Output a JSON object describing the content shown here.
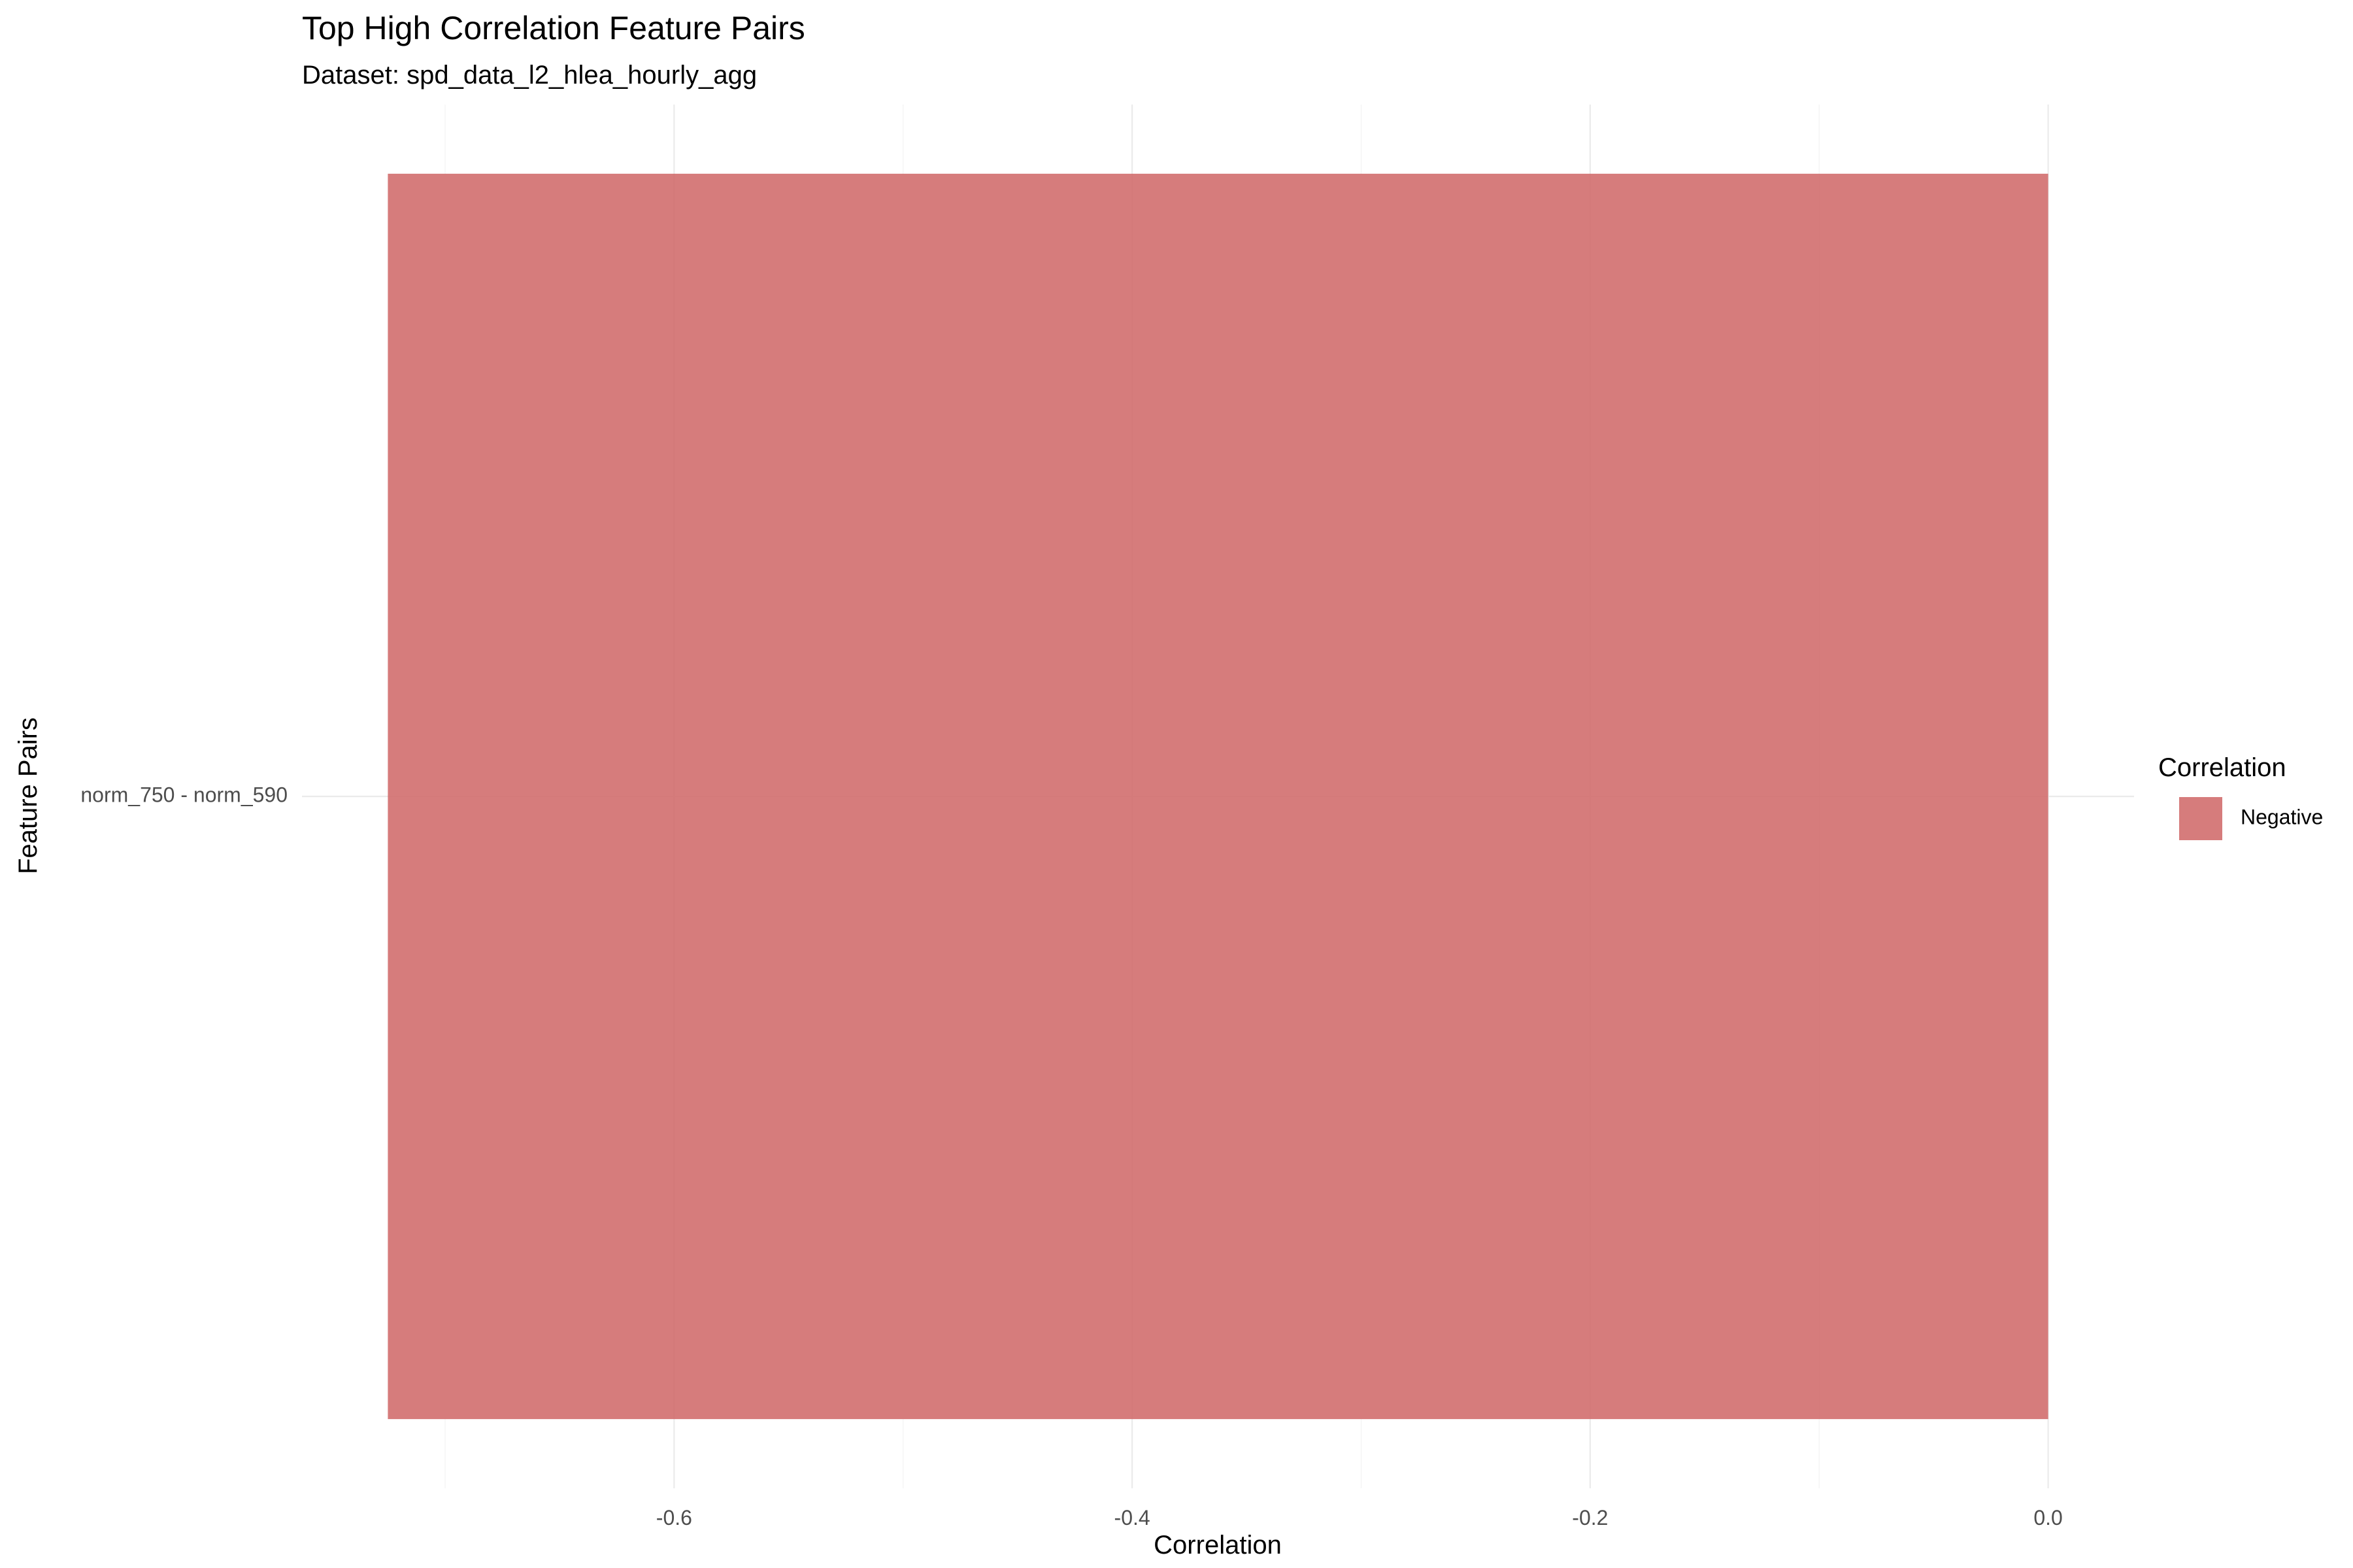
{
  "chart_data": {
    "type": "bar",
    "orientation": "horizontal",
    "title": "Top High Correlation Feature Pairs",
    "subtitle": "Dataset: spd_data_l2_hlea_hourly_agg",
    "xlabel": "Correlation",
    "ylabel": "Feature Pairs",
    "categories": [
      "norm_750 - norm_590"
    ],
    "series": [
      {
        "name": "Negative",
        "values": [
          -0.725
        ],
        "color": "#d06a6a"
      }
    ],
    "xlim": [
      -0.7625,
      0.0375
    ],
    "x_ticks": [
      -0.6,
      -0.4,
      -0.2,
      0.0
    ],
    "x_tick_labels": [
      "-0.6",
      "-0.4",
      "-0.2",
      "0.0"
    ],
    "grid": true,
    "legend": {
      "title": "Correlation",
      "position": "right",
      "entries": [
        {
          "label": "Negative",
          "color": "#d06a6a"
        }
      ]
    }
  }
}
